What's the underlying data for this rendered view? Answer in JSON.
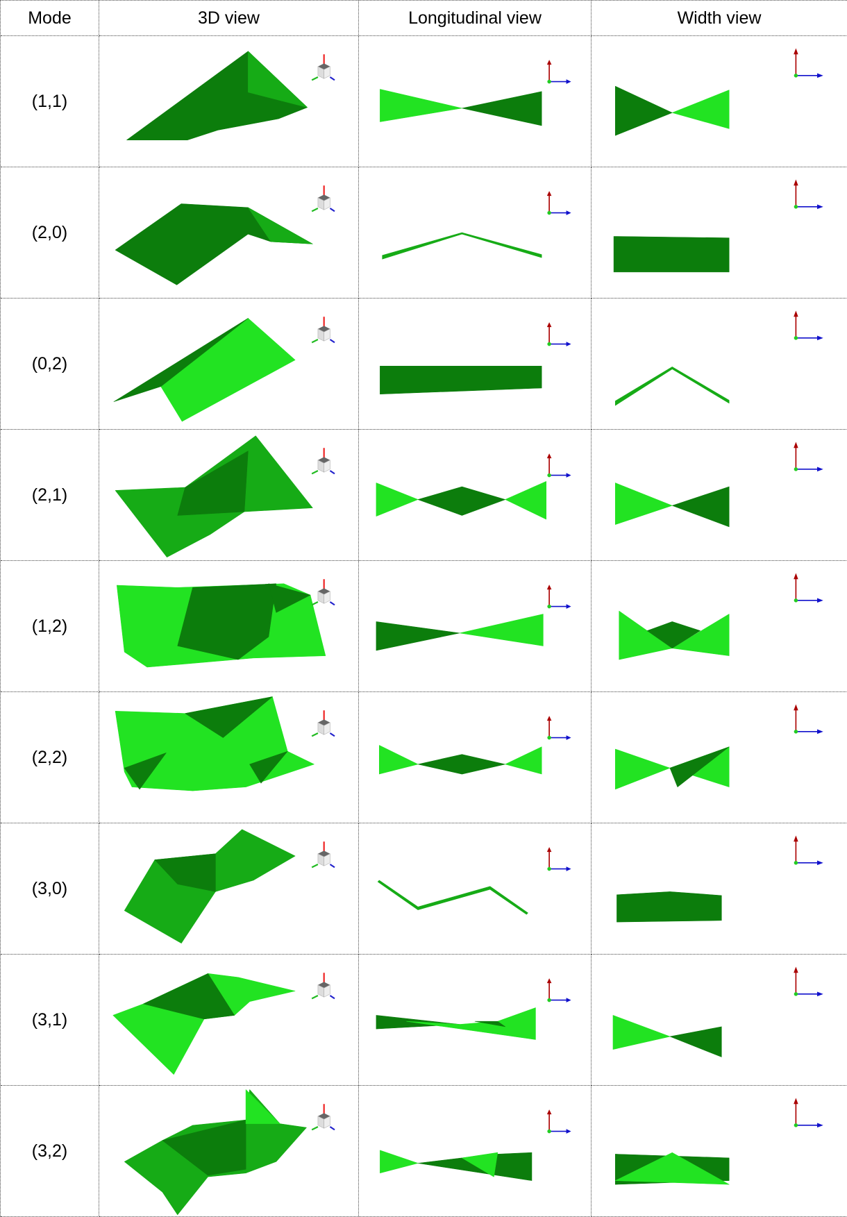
{
  "table": {
    "header": [
      "Mode",
      "3D view",
      "Longitudinal view",
      "Width view"
    ],
    "rows": [
      [
        "(1,1)"
      ],
      [
        "(2,0)"
      ],
      [
        "(0,2)"
      ],
      [
        "(2,1)"
      ],
      [
        "(1,2)"
      ],
      [
        "(2,2)"
      ],
      [
        "(3,0)"
      ],
      [
        "(3,1)"
      ],
      [
        "(3,2)"
      ]
    ]
  }
}
